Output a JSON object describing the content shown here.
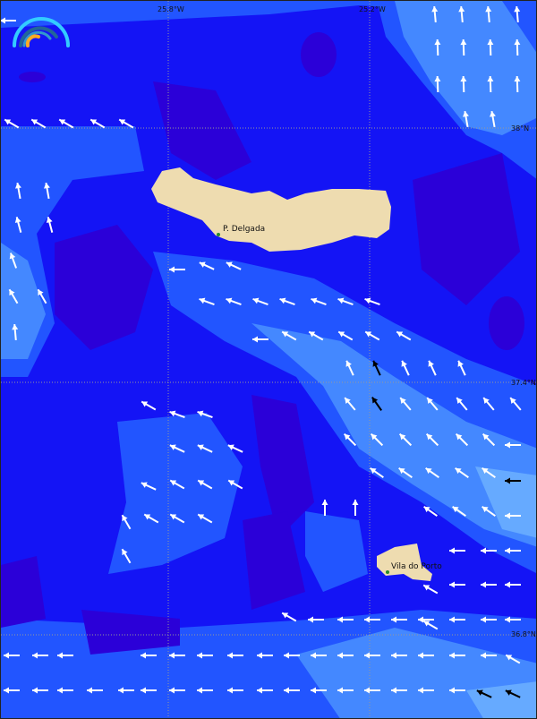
{
  "map": {
    "graticule": {
      "lon_labels": [
        "25.8°W",
        "25.2°W"
      ],
      "lat_labels": [
        "38°N",
        "37.4°N",
        "36.8°N"
      ]
    },
    "places": [
      {
        "name": "P. Delgada"
      },
      {
        "name": "Vila do Porto"
      }
    ],
    "colors": {
      "deep": "#2b00d8",
      "mid": "#1414f5",
      "light": "#2255ff",
      "lighter": "#4488ff",
      "lightest": "#66aaff",
      "land": "#eedcb0",
      "arrow": "#ffffff",
      "arrow_strong": "#000000"
    },
    "logo_icon": "rainbow-arc-logo"
  }
}
